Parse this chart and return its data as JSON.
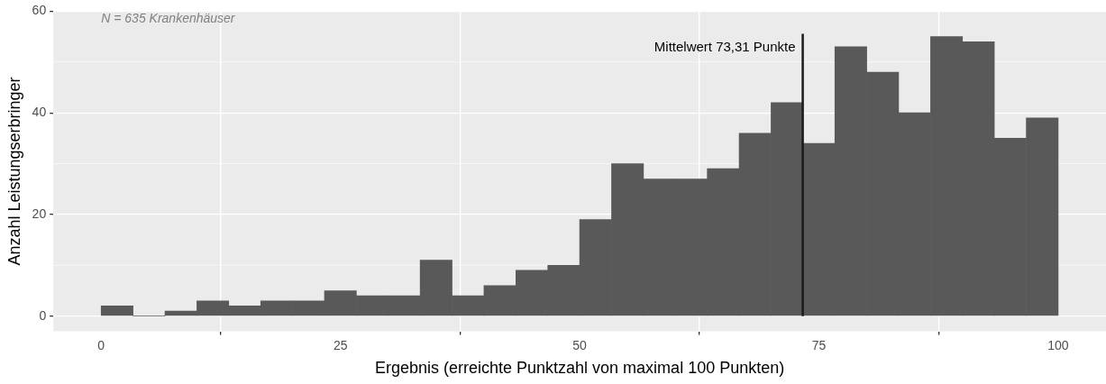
{
  "chart_data": {
    "type": "histogram",
    "bins": [
      0,
      3.33,
      6.67,
      10,
      13.33,
      16.67,
      20,
      23.33,
      26.67,
      30,
      33.33,
      36.67,
      40,
      43.33,
      46.67,
      50,
      53.33,
      56.67,
      60,
      63.33,
      66.67,
      70,
      73.33,
      76.67,
      80,
      83.33,
      86.67,
      90,
      93.33,
      96.67,
      100
    ],
    "values": [
      2,
      0,
      1,
      3,
      2,
      3,
      3,
      5,
      4,
      4,
      11,
      4,
      6,
      9,
      10,
      19,
      30,
      27,
      27,
      29,
      36,
      42,
      34,
      53,
      48,
      40,
      55,
      54,
      35,
      39
    ],
    "color": "#595959",
    "xlabel": "Ergebnis (erreichte Punktzahl von maximal 100 Punkten)",
    "ylabel": "Anzahl Leistungserbringer",
    "xlim": [
      -5,
      105
    ],
    "xticks": [
      0,
      25,
      50,
      75,
      100
    ],
    "ylim": [
      -3,
      60
    ],
    "yticks": [
      0,
      20,
      40,
      60
    ],
    "grid": true,
    "legend": false,
    "ref_lines": [
      {
        "axis": "x",
        "value": 73.31,
        "label": "Mittelwert 73,31 Punkte",
        "color": "#1a1a1a"
      }
    ],
    "annotations": [
      "N = 635 Krankenhäuser"
    ]
  }
}
